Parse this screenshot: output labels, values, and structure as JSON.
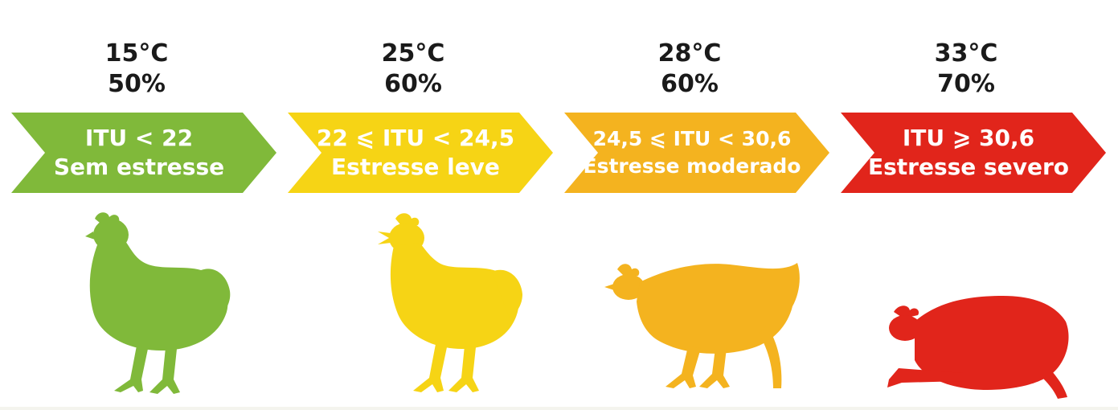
{
  "stages": [
    {
      "temperature": "15°C",
      "humidity": "50%",
      "itu_range": "ITU < 22",
      "stress_label": "Sem estresse",
      "color": "#80b93a",
      "icon": "chicken-standing-icon"
    },
    {
      "temperature": "25°C",
      "humidity": "60%",
      "itu_range": "22 ⩽ ITU < 24,5",
      "stress_label": "Estresse leve",
      "color": "#f6d415",
      "icon": "chicken-panting-icon"
    },
    {
      "temperature": "28°C",
      "humidity": "60%",
      "itu_range": "24,5 ⩽ ITU < 30,6",
      "stress_label": "Estresse moderado",
      "color": "#f4b31f",
      "icon": "chicken-crouching-icon"
    },
    {
      "temperature": "33°C",
      "humidity": "70%",
      "itu_range": "ITU ⩾ 30,6",
      "stress_label": "Estresse severo",
      "color": "#e1251b",
      "icon": "chicken-lying-icon"
    }
  ]
}
